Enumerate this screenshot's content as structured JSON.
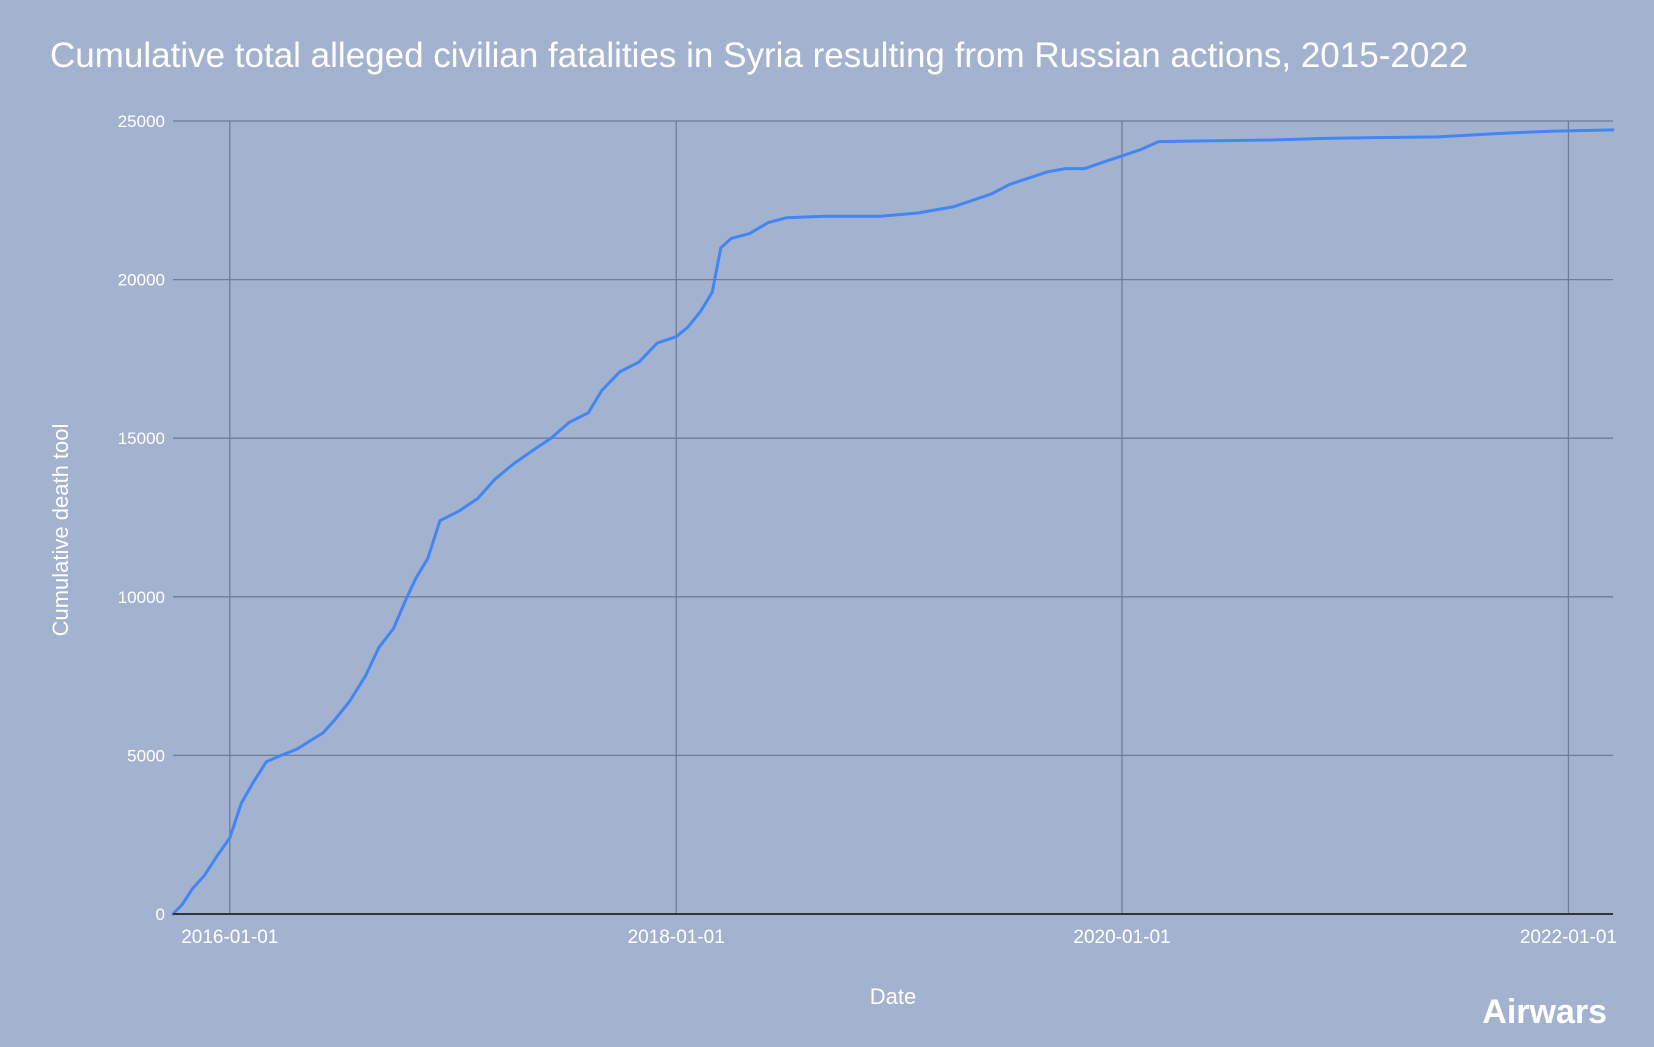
{
  "colors": {
    "background": "#a3b3cf",
    "grid": "#6f7c93",
    "baseline": "#333333",
    "line": "#4285f4",
    "text": "#ffffff"
  },
  "brand": "Airwars",
  "chart_data": {
    "type": "line",
    "title": "Cumulative total alleged civilian fatalities in Syria resulting from Russian actions, 2015-2022",
    "xlabel": "Date",
    "ylabel": "Cumulative death tool",
    "x_ticks": [
      "2016-01-01",
      "2018-01-01",
      "2020-01-01",
      "2022-01-01"
    ],
    "xlim": [
      "2015-09-30",
      "2022-03-15"
    ],
    "ylim": [
      0,
      25000
    ],
    "y_ticks": [
      0,
      5000,
      10000,
      15000,
      20000,
      25000
    ],
    "grid": true,
    "legend": "none",
    "series": [
      {
        "x": [
          "2015-09-30",
          "2015-10-15",
          "2015-11-01",
          "2015-11-20",
          "2015-12-10",
          "2016-01-01",
          "2016-01-20",
          "2016-02-10",
          "2016-03-01",
          "2016-03-25",
          "2016-04-20",
          "2016-05-15",
          "2016-06-01",
          "2016-06-20",
          "2016-07-15",
          "2016-08-10",
          "2016-09-01",
          "2016-09-25",
          "2016-10-15",
          "2016-11-01",
          "2016-11-20",
          "2016-12-10",
          "2017-01-10",
          "2017-02-10",
          "2017-03-10",
          "2017-04-10",
          "2017-05-10",
          "2017-06-10",
          "2017-07-10",
          "2017-08-10",
          "2017-09-01",
          "2017-10-01",
          "2017-11-01",
          "2017-12-01",
          "2018-01-01",
          "2018-01-20",
          "2018-02-10",
          "2018-03-01",
          "2018-03-15",
          "2018-04-01",
          "2018-05-01",
          "2018-06-01",
          "2018-07-01",
          "2018-09-01",
          "2018-12-01",
          "2019-01-01",
          "2019-02-01",
          "2019-04-01",
          "2019-06-01",
          "2019-07-01",
          "2019-09-01",
          "2019-10-01",
          "2019-11-01",
          "2019-12-01",
          "2020-01-01",
          "2020-02-01",
          "2020-03-01",
          "2020-06-01",
          "2020-09-01",
          "2020-12-01",
          "2021-03-01",
          "2021-06-01",
          "2021-09-01",
          "2021-12-01",
          "2022-03-15"
        ],
        "y": [
          0,
          300,
          800,
          1200,
          1800,
          2400,
          3500,
          4200,
          4800,
          5000,
          5200,
          5500,
          5700,
          6100,
          6700,
          7500,
          8400,
          9000,
          9900,
          10600,
          11200,
          12400,
          12700,
          13100,
          13700,
          14200,
          14600,
          15000,
          15500,
          15800,
          16500,
          17100,
          17400,
          18000,
          18200,
          18500,
          19000,
          19600,
          21000,
          21300,
          21450,
          21800,
          21950,
          22000,
          22000,
          22050,
          22100,
          22300,
          22700,
          23000,
          23400,
          23500,
          23500,
          23700,
          23900,
          24100,
          24350,
          24380,
          24400,
          24450,
          24480,
          24500,
          24600,
          24680,
          24720
        ]
      }
    ]
  }
}
